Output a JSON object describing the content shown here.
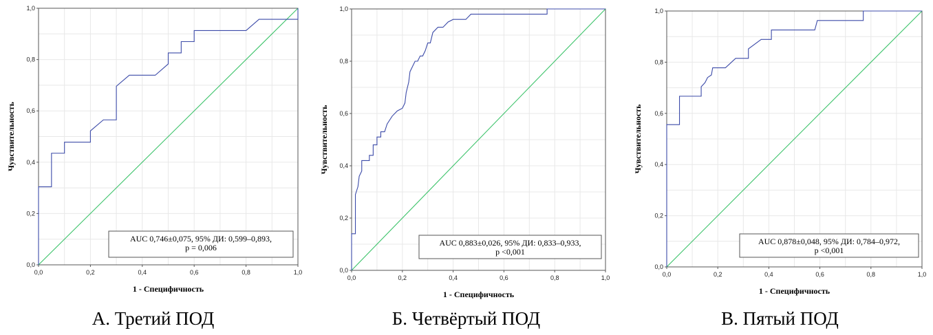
{
  "chart_data": [
    {
      "type": "line",
      "caption": "А. Третий ПОД",
      "xlabel": "1 - Специфичность",
      "ylabel": "Чувствительность",
      "xlim": [
        0,
        1
      ],
      "ylim": [
        0,
        1
      ],
      "x_ticks": [
        "0,0",
        "0,2",
        "0,4",
        "0,6",
        "0,8",
        "1,0"
      ],
      "y_ticks": [
        "0,0",
        "0,2",
        "0,4",
        "0,6",
        "0,8",
        "1,0"
      ],
      "grid": true,
      "auc_lines": [
        "AUC 0,746±0,075, 95% ДИ: 0,599–0,893,",
        "p = 0,006"
      ],
      "colors": {
        "roc": "#3b4aa8",
        "reference": "#3cc36a"
      },
      "series": [
        {
          "x": [
            0,
            0,
            0.05,
            0.05,
            0.1,
            0.1,
            0.2,
            0.2,
            0.25,
            0.3,
            0.3,
            0.35,
            0.45,
            0.5,
            0.5,
            0.55,
            0.55,
            0.6,
            0.6,
            0.8,
            0.85,
            1.0,
            1.0
          ],
          "y": [
            0,
            0.304,
            0.304,
            0.435,
            0.435,
            0.478,
            0.478,
            0.522,
            0.565,
            0.565,
            0.696,
            0.739,
            0.739,
            0.783,
            0.826,
            0.826,
            0.87,
            0.87,
            0.913,
            0.913,
            0.957,
            0.957,
            1.0
          ]
        },
        {
          "x": [
            0,
            1
          ],
          "y": [
            0,
            1
          ]
        }
      ]
    },
    {
      "type": "line",
      "caption": "Б. Четвёртый ПОД",
      "xlabel": "1 - Специфичность",
      "ylabel": "Чувствительность",
      "xlim": [
        0,
        1
      ],
      "ylim": [
        0,
        1
      ],
      "x_ticks": [
        "0,0",
        "0,2",
        "0,4",
        "0,6",
        "0,8",
        "1,0"
      ],
      "y_ticks": [
        "0,0",
        "0,2",
        "0,4",
        "0,6",
        "0,8",
        "1,0"
      ],
      "grid": true,
      "auc_lines": [
        "AUC 0,883±0,026, 95% ДИ: 0,833–0,933,",
        "p <0,001"
      ],
      "colors": {
        "roc": "#3b4aa8",
        "reference": "#3cc36a"
      },
      "series": [
        {
          "x": [
            0,
            0,
            0.015,
            0.015,
            0.025,
            0.03,
            0.04,
            0.04,
            0.07,
            0.07,
            0.085,
            0.085,
            0.1,
            0.1,
            0.115,
            0.115,
            0.13,
            0.14,
            0.16,
            0.18,
            0.2,
            0.21,
            0.215,
            0.225,
            0.23,
            0.24,
            0.25,
            0.26,
            0.27,
            0.28,
            0.29,
            0.3,
            0.31,
            0.32,
            0.34,
            0.36,
            0.38,
            0.4,
            0.42,
            0.45,
            0.47,
            0.5,
            0.77,
            0.77,
            1.0
          ],
          "y": [
            0,
            0.14,
            0.14,
            0.29,
            0.32,
            0.36,
            0.38,
            0.42,
            0.42,
            0.44,
            0.44,
            0.48,
            0.48,
            0.51,
            0.51,
            0.53,
            0.53,
            0.56,
            0.59,
            0.61,
            0.62,
            0.64,
            0.68,
            0.72,
            0.76,
            0.78,
            0.8,
            0.8,
            0.82,
            0.82,
            0.84,
            0.87,
            0.87,
            0.91,
            0.93,
            0.93,
            0.95,
            0.96,
            0.96,
            0.96,
            0.98,
            0.98,
            0.98,
            1.0,
            1.0
          ]
        },
        {
          "x": [
            0,
            1
          ],
          "y": [
            0,
            1
          ]
        }
      ]
    },
    {
      "type": "line",
      "caption": "В. Пятый ПОД",
      "xlabel": "1 - Специфичность",
      "ylabel": "Чувствительность",
      "xlim": [
        0,
        1
      ],
      "ylim": [
        0,
        1
      ],
      "x_ticks": [
        "0,0",
        "0,2",
        "0,4",
        "0,6",
        "0,8",
        "1,0"
      ],
      "y_ticks": [
        "0,0",
        "0,2",
        "0,4",
        "0,6",
        "0,8",
        "1,0"
      ],
      "grid": true,
      "auc_lines": [
        "AUC 0,878±0,048, 95% ДИ: 0,784–0,972,",
        "p <0,001"
      ],
      "colors": {
        "roc": "#3b4aa8",
        "reference": "#3cc36a"
      },
      "series": [
        {
          "x": [
            0,
            0,
            0.05,
            0.05,
            0.135,
            0.135,
            0.15,
            0.16,
            0.175,
            0.18,
            0.23,
            0.27,
            0.32,
            0.32,
            0.37,
            0.41,
            0.41,
            0.58,
            0.59,
            0.77,
            0.77,
            1.0
          ],
          "y": [
            0,
            0.556,
            0.556,
            0.667,
            0.667,
            0.704,
            0.72,
            0.74,
            0.75,
            0.778,
            0.778,
            0.815,
            0.815,
            0.852,
            0.889,
            0.889,
            0.926,
            0.926,
            0.963,
            0.963,
            1.0,
            1.0
          ]
        },
        {
          "x": [
            0,
            1
          ],
          "y": [
            0,
            1
          ]
        }
      ]
    }
  ]
}
